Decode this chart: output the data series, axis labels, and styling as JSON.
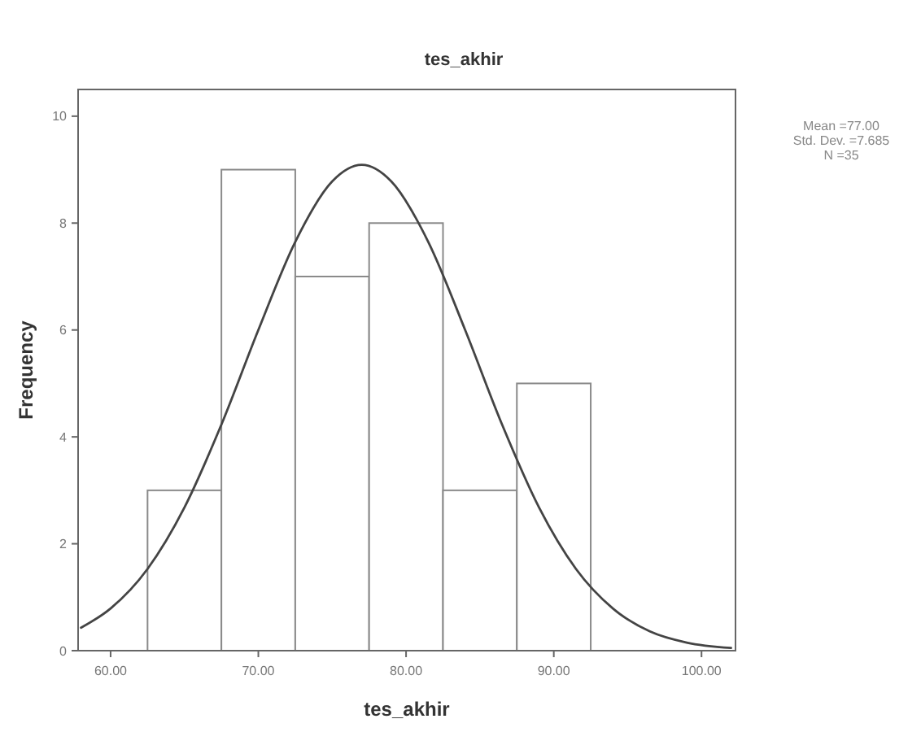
{
  "chart_data": {
    "type": "histogram",
    "title": "tes_akhir",
    "xlabel": "tes_akhir",
    "ylabel": "Frequency",
    "annotations": [
      "Mean =77.00",
      "Std. Dev. =7.685",
      "N =35"
    ],
    "series": [
      {
        "bins": [
          62.5,
          67.5,
          72.5,
          77.5,
          82.5,
          87.5,
          92.5
        ],
        "values": [
          3,
          9,
          7,
          8,
          3,
          5
        ],
        "color": "#ffffff"
      },
      {
        "type": "line",
        "color": "#444444",
        "x": [
          58,
          60,
          62.5,
          65,
          67.5,
          70,
          72.5,
          75,
          77,
          79,
          81.5,
          84,
          86.5,
          89,
          91.5,
          94,
          96.5,
          99,
          102
        ],
        "values": [
          0.43,
          0.79,
          1.53,
          2.68,
          4.23,
          6.0,
          7.65,
          8.78,
          9.09,
          8.78,
          7.65,
          6.0,
          4.23,
          2.68,
          1.53,
          0.79,
          0.36,
          0.15,
          0.05
        ]
      }
    ],
    "xlim": [
      57.8,
      102.3
    ],
    "ylim": [
      0,
      10.5
    ],
    "xticks": [
      {
        "value": 60,
        "label": "60.00"
      },
      {
        "value": 70,
        "label": "70.00"
      },
      {
        "value": 80,
        "label": "80.00"
      },
      {
        "value": 90,
        "label": "90.00"
      },
      {
        "value": 100,
        "label": "100.00"
      }
    ],
    "yticks": [
      0,
      2,
      4,
      6,
      8,
      10
    ],
    "grid": false,
    "marker": "none",
    "line_style": "solid"
  }
}
